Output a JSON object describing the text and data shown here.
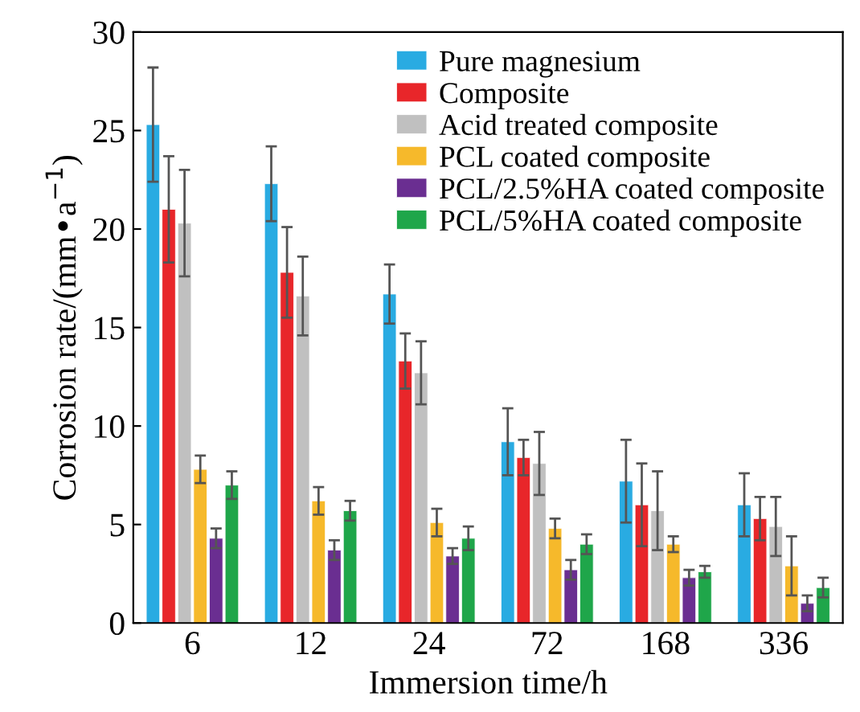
{
  "chart_data": {
    "type": "bar",
    "xlabel": "Immersion time/h",
    "ylabel": "Corrosion rate/(mm•a$^{−1}$)",
    "categories": [
      "6",
      "12",
      "24",
      "72",
      "168",
      "336"
    ],
    "series": [
      {
        "name": "Pure magnesium",
        "color": "#29abe2",
        "values": [
          25.3,
          22.3,
          16.7,
          9.2,
          7.2,
          6.0
        ],
        "errors": [
          2.9,
          1.9,
          1.5,
          1.7,
          2.1,
          1.6
        ]
      },
      {
        "name": "Composite",
        "color": "#e8262a",
        "values": [
          21.0,
          17.8,
          13.3,
          8.4,
          6.0,
          5.3
        ],
        "errors": [
          2.7,
          2.3,
          1.4,
          0.9,
          2.1,
          1.1
        ]
      },
      {
        "name": "Acid treated composite",
        "color": "#c0c0c0",
        "values": [
          20.3,
          16.6,
          12.7,
          8.1,
          5.7,
          4.9
        ],
        "errors": [
          2.7,
          2.0,
          1.6,
          1.6,
          2.0,
          1.5
        ]
      },
      {
        "name": "PCL coated composite",
        "color": "#f6b92b",
        "values": [
          7.8,
          6.2,
          5.1,
          4.8,
          4.0,
          2.9
        ],
        "errors": [
          0.7,
          0.7,
          0.7,
          0.5,
          0.4,
          1.5
        ]
      },
      {
        "name": "PCL/2.5%HA coated composite",
        "color": "#6a2e91",
        "values": [
          4.3,
          3.7,
          3.4,
          2.7,
          2.3,
          1.0
        ],
        "errors": [
          0.5,
          0.5,
          0.4,
          0.5,
          0.4,
          0.4
        ]
      },
      {
        "name": "PCL/5%HA coated composite",
        "color": "#1fa64a",
        "values": [
          7.0,
          5.7,
          4.3,
          4.0,
          2.6,
          1.8
        ],
        "errors": [
          0.7,
          0.5,
          0.6,
          0.5,
          0.3,
          0.5
        ]
      }
    ],
    "ylim": [
      0,
      30
    ],
    "yticks": [
      0,
      5,
      10,
      15,
      20,
      25,
      30
    ],
    "legend": "top right",
    "grid": false
  }
}
